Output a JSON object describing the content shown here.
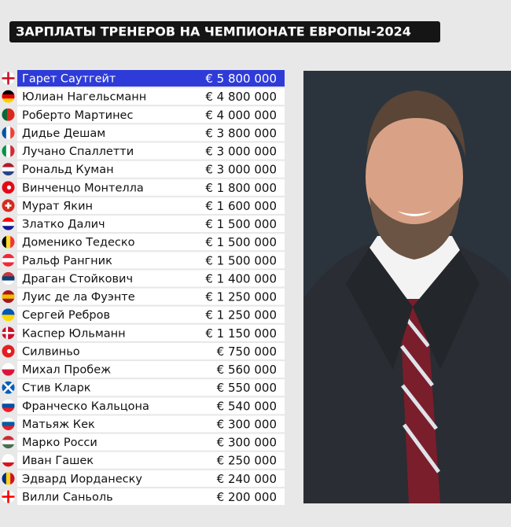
{
  "header": {
    "title": "ЗАРПЛАТЫ ТРЕНЕРОВ НА ЧЕМПИОНАТЕ ЕВРОПЫ-2024"
  },
  "table": {
    "rows": [
      [
        "Гарет Саутгейт",
        "€ 5 800 000"
      ],
      [
        "Юлиан Нагельсманн",
        "€ 4 800 000"
      ],
      [
        "Роберто Мартинес",
        "€ 4 000 000"
      ],
      [
        "Дидье Дешам",
        "€ 3 800 000"
      ],
      [
        "Лучано Спаллетти",
        "€ 3 000 000"
      ],
      [
        "Рональд Куман",
        "€ 3 000 000"
      ],
      [
        "Винченцо Монтелла",
        "€ 1 800 000"
      ],
      [
        "Мурат Якин",
        "€ 1 600 000"
      ],
      [
        "Златко Далич",
        "€ 1 500 000"
      ],
      [
        "Доменико Тедеско",
        "€ 1 500 000"
      ],
      [
        "Ральф Рангник",
        "€ 1 500 000"
      ],
      [
        "Драган Стойкович",
        "€ 1 400 000"
      ],
      [
        "Луис де ла Фуэнте",
        "€ 1 250 000"
      ],
      [
        "Сергей Ребров",
        "€ 1 250 000"
      ],
      [
        "Каспер Юльманн",
        "€ 1 150 000"
      ],
      [
        "Силвиньо",
        "€ 750 000"
      ],
      [
        "Михал Пробеж",
        "€ 560 000"
      ],
      [
        "Стив Кларк",
        "€ 550 000"
      ],
      [
        "Франческо Кальцона",
        "€ 540 000"
      ],
      [
        "Матьяж Кек",
        "€ 300 000"
      ],
      [
        "Марко Росси",
        "€ 300 000"
      ],
      [
        "Иван Гашек",
        "€ 250 000"
      ],
      [
        "Эдвард Иорданеску",
        "€ 240 000"
      ],
      [
        "Вилли Саньоль",
        "€ 200 000"
      ]
    ]
  }
}
